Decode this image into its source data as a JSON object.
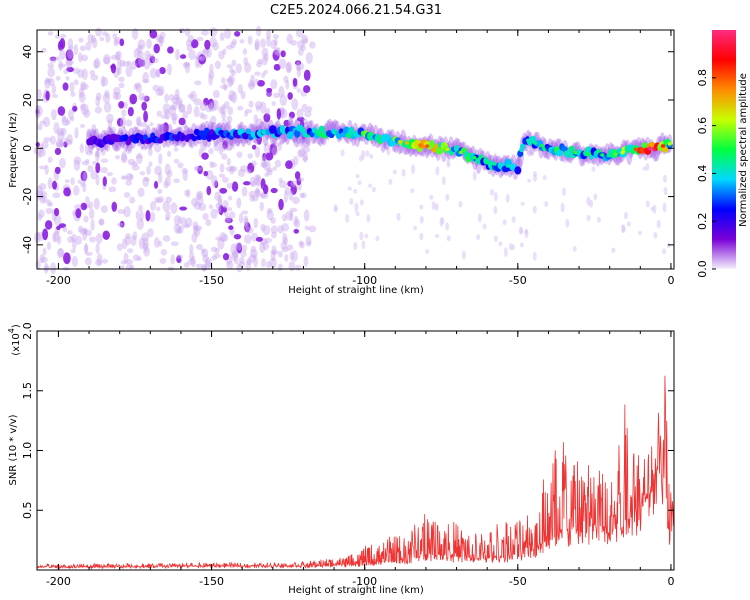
{
  "title": "C2E5.2024.066.21.54.G31",
  "chart_data": [
    {
      "type": "heatmap",
      "xlabel": "Height of straight line (km)",
      "ylabel": "Frequency (Hz)",
      "xlim": [
        -207,
        1
      ],
      "ylim": [
        -50,
        49
      ],
      "x_ticks": [
        -200,
        -150,
        -100,
        -50,
        0
      ],
      "x_tick_labels": [
        "-200",
        "-150",
        "-100",
        "-50",
        "0"
      ],
      "y_ticks": [
        -40,
        -20,
        0,
        20,
        40
      ],
      "y_tick_labels": [
        "-40",
        "-20",
        "0",
        "20",
        "40"
      ],
      "colorbar": {
        "label": "Normalized spectral amplitude",
        "range": [
          0,
          1
        ],
        "ticks": [
          0.0,
          0.2,
          0.4,
          0.6,
          0.8
        ],
        "tick_labels": [
          "0.0",
          "0.2",
          "0.4",
          "0.6",
          "0.8"
        ],
        "colormap": [
          "#f4f0fc",
          "#7a00d8",
          "#0000ff",
          "#00d8ff",
          "#00ff40",
          "#c8ff00",
          "#ff8c00",
          "#ff0000",
          "#ff2a80"
        ]
      },
      "ridge": [
        {
          "x": -190,
          "f": 3,
          "a": 0.2
        },
        {
          "x": -170,
          "f": 4,
          "a": 0.25
        },
        {
          "x": -150,
          "f": 6,
          "a": 0.3
        },
        {
          "x": -140,
          "f": 6,
          "a": 0.35
        },
        {
          "x": -120,
          "f": 7,
          "a": 0.4
        },
        {
          "x": -100,
          "f": 6,
          "a": 0.5
        },
        {
          "x": -90,
          "f": 3,
          "a": 0.55
        },
        {
          "x": -80,
          "f": 1,
          "a": 0.7
        },
        {
          "x": -70,
          "f": -1,
          "a": 0.5
        },
        {
          "x": -60,
          "f": -6,
          "a": 0.4
        },
        {
          "x": -50,
          "f": -8,
          "a": 0.35
        },
        {
          "x": -48,
          "f": 4,
          "a": 0.35
        },
        {
          "x": -40,
          "f": 0,
          "a": 0.45
        },
        {
          "x": -30,
          "f": -2,
          "a": 0.45
        },
        {
          "x": -20,
          "f": -3,
          "a": 0.4
        },
        {
          "x": -10,
          "f": 0,
          "a": 0.75
        },
        {
          "x": -5,
          "f": 0,
          "a": 0.95
        },
        {
          "x": 0,
          "f": 2,
          "a": 0.5
        }
      ],
      "noise_region": {
        "x_from": -207,
        "x_to": -117,
        "f_from": -50,
        "f_to": 49,
        "amplitude": 0.05
      }
    },
    {
      "type": "line",
      "xlabel": "Height of straight line (km)",
      "ylabel": "SNR (10 * v/v)",
      "y_scale_label": "(x10",
      "y_scale_exp": "4",
      "y_scale_close": ")",
      "xlim": [
        -207,
        1
      ],
      "ylim": [
        0,
        2.0
      ],
      "x_ticks": [
        -200,
        -150,
        -100,
        -50,
        0
      ],
      "x_tick_labels": [
        "-200",
        "-150",
        "-100",
        "-50",
        "0"
      ],
      "y_ticks": [
        0.5,
        1.0,
        1.5,
        2.0
      ],
      "y_tick_labels": [
        "0.5",
        "1.0",
        "1.5",
        "2.0"
      ],
      "color": "#ee3333",
      "envelope": {
        "x": [
          -207,
          -150,
          -120,
          -105,
          -100,
          -90,
          -85,
          -80,
          -75,
          -70,
          -65,
          -60,
          -55,
          -50,
          -45,
          -40,
          -35,
          -30,
          -25,
          -20,
          -15,
          -10,
          -5,
          -2,
          -1,
          0,
          1
        ],
        "base": [
          0.02,
          0.03,
          0.03,
          0.04,
          0.05,
          0.07,
          0.08,
          0.12,
          0.12,
          0.1,
          0.08,
          0.09,
          0.1,
          0.12,
          0.15,
          0.25,
          0.3,
          0.3,
          0.32,
          0.3,
          0.4,
          0.5,
          0.7,
          0.9,
          0.2,
          0.5,
          0.55
        ],
        "peak": [
          0.05,
          0.06,
          0.07,
          0.12,
          0.2,
          0.3,
          0.35,
          0.5,
          0.45,
          0.4,
          0.3,
          0.35,
          0.45,
          0.45,
          0.6,
          1.0,
          1.2,
          1.05,
          1.0,
          1.0,
          1.4,
          1.1,
          1.05,
          2.0,
          0.9,
          0.65,
          0.7
        ]
      }
    }
  ]
}
